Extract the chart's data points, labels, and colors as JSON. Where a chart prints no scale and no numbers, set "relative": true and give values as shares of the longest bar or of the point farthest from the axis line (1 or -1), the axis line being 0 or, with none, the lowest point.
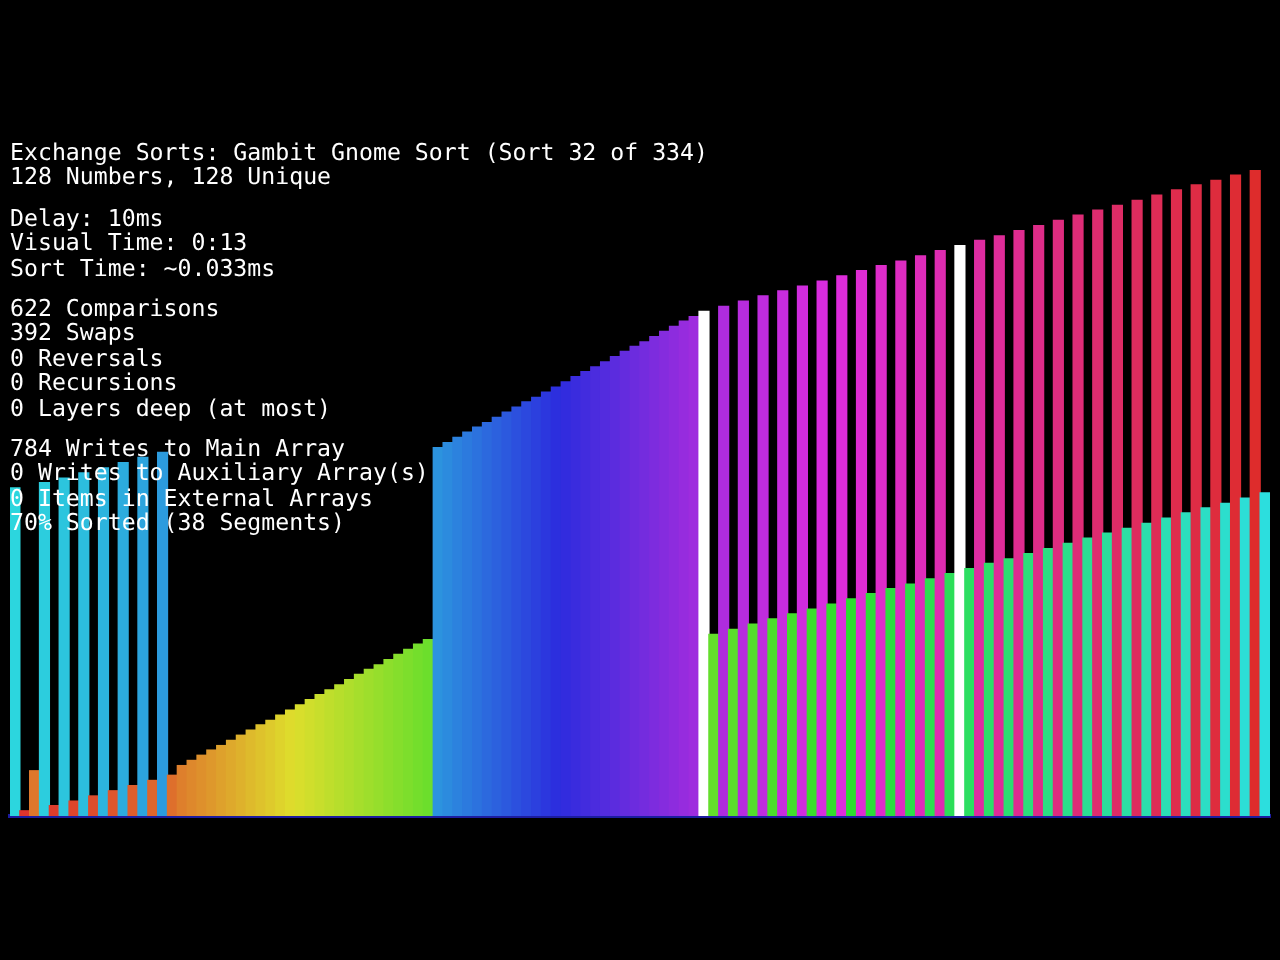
{
  "chart_data": {
    "type": "bar",
    "relative": true,
    "title": "Exchange Sorts: Gambit Gnome Sort (Sort 32 of 334)",
    "subtitle": "128 Numbers, 128 Unique",
    "annotations": [
      "Delay: 10ms",
      "Visual Time: 0:13",
      "Sort Time: ~0.033ms",
      "622 Comparisons",
      "392 Swaps",
      "0 Reversals",
      "0 Recursions",
      "0 Layers deep (at most)",
      "784 Writes to Main Array",
      "0 Writes to Auxiliary Array(s)",
      "0 Items in External Arrays",
      "70% Sorted (38 Segments)"
    ],
    "categories": [
      null,
      null,
      null,
      null,
      null,
      null,
      null,
      null,
      null,
      null,
      null,
      null,
      null,
      null,
      null,
      null,
      null,
      null,
      null,
      null,
      null,
      null,
      null,
      null,
      null,
      null,
      null,
      null,
      null,
      null,
      null,
      null,
      null,
      null,
      null,
      null,
      null,
      null,
      null,
      null,
      null,
      null,
      null,
      null,
      null,
      null,
      null,
      null,
      null,
      null,
      null,
      null,
      null,
      null,
      null,
      null,
      null,
      null,
      null,
      null,
      null,
      null,
      null,
      null,
      null,
      null,
      null,
      null,
      null,
      null,
      null,
      null,
      null,
      null,
      null,
      null,
      null,
      null,
      null,
      null,
      null,
      null,
      null,
      null,
      null,
      null,
      null,
      null,
      null,
      null,
      null,
      null,
      null,
      null,
      null,
      null,
      null,
      null,
      null,
      null,
      null,
      null,
      null,
      null,
      null,
      null,
      null,
      null,
      null,
      null,
      null,
      null,
      null,
      null,
      null,
      null,
      null,
      null,
      null,
      null,
      null,
      null,
      null,
      null,
      null,
      null,
      null,
      null
    ],
    "values": [
      0.508,
      0.008,
      0.07,
      0.516,
      0.016,
      0.523,
      0.023,
      0.531,
      0.031,
      0.539,
      0.039,
      0.547,
      0.047,
      0.555,
      0.055,
      0.563,
      0.063,
      0.078,
      0.086,
      0.094,
      0.102,
      0.109,
      0.117,
      0.125,
      0.133,
      0.141,
      0.148,
      0.156,
      0.164,
      0.172,
      0.18,
      0.188,
      0.195,
      0.203,
      0.211,
      0.219,
      0.227,
      0.234,
      0.242,
      0.25,
      0.258,
      0.266,
      0.273,
      0.57,
      0.578,
      0.586,
      0.594,
      0.602,
      0.609,
      0.617,
      0.625,
      0.633,
      0.641,
      0.648,
      0.656,
      0.664,
      0.672,
      0.68,
      0.688,
      0.695,
      0.703,
      0.711,
      0.719,
      0.727,
      0.734,
      0.742,
      0.75,
      0.758,
      0.766,
      0.773,
      0.781,
      0.281,
      0.789,
      0.289,
      0.797,
      0.297,
      0.805,
      0.305,
      0.813,
      0.313,
      0.82,
      0.32,
      0.828,
      0.328,
      0.836,
      0.336,
      0.844,
      0.344,
      0.852,
      0.352,
      0.859,
      0.359,
      0.867,
      0.367,
      0.875,
      0.375,
      0.883,
      0.383,
      0.891,
      0.391,
      0.898,
      0.398,
      0.906,
      0.406,
      0.914,
      0.414,
      0.922,
      0.422,
      0.93,
      0.43,
      0.938,
      0.438,
      0.945,
      0.445,
      0.953,
      0.453,
      0.961,
      0.461,
      0.969,
      0.469,
      0.977,
      0.477,
      0.984,
      0.484,
      0.992,
      0.492,
      1,
      0.5
    ],
    "colors": [
      "#2cd6de",
      "#de342c",
      "#de772c",
      "#2ccdde",
      "#de3d2c",
      "#2cc5de",
      "#de452c",
      "#2cbdde",
      "#de4d2c",
      "#2cb4de",
      "#de562c",
      "#2cacde",
      "#de5e2c",
      "#2ca4de",
      "#de662c",
      "#2c9bde",
      "#de6f2c",
      "#de7f2c",
      "#de882c",
      "#de902c",
      "#de982c",
      "#dea12c",
      "#dea92c",
      "#deb12c",
      "#deba2c",
      "#dec22c",
      "#deca2c",
      "#ded32c",
      "#dedb2c",
      "#d8de2c",
      "#d0de2c",
      "#c8de2c",
      "#bfde2c",
      "#b7de2c",
      "#afde2c",
      "#a6de2c",
      "#9ede2c",
      "#96de2c",
      "#8dde2c",
      "#85de2c",
      "#7dde2c",
      "#74de2c",
      "#6cde2c",
      "#2c93de",
      "#2c8bde",
      "#2c82de",
      "#2c7ade",
      "#2c72de",
      "#2c69de",
      "#2c61de",
      "#2c59de",
      "#2c50de",
      "#2c48de",
      "#2c40de",
      "#2c37de",
      "#2c2fde",
      "#322cde",
      "#3a2cde",
      "#422cde",
      "#4b2cde",
      "#532cde",
      "#5b2cde",
      "#642cde",
      "#6c2cde",
      "#742cde",
      "#7d2cde",
      "#852cde",
      "#8d2cde",
      "#962cde",
      "#9e2cde",
      "#ffffff",
      "#64de2c",
      "#af2cde",
      "#5bde2c",
      "#b72cde",
      "#53de2c",
      "#bf2cde",
      "#4bde2c",
      "#c82cde",
      "#42de2c",
      "#d02cde",
      "#3ade2c",
      "#d82cde",
      "#32de2c",
      "#de2cdb",
      "#2cde2f",
      "#de2cd3",
      "#2cde37",
      "#de2cca",
      "#2cde3f",
      "#de2cc2",
      "#2cde48",
      "#de2cba",
      "#2cde50",
      "#de2cb1",
      "#2cde58",
      "#ffffff",
      "#2cde61",
      "#de2ca1",
      "#2cde69",
      "#de2c98",
      "#2cde71",
      "#de2c90",
      "#2cde7a",
      "#de2c88",
      "#2cde82",
      "#de2c7f",
      "#2cde8a",
      "#de2c77",
      "#2cde93",
      "#de2c6f",
      "#2cde9b",
      "#de2c66",
      "#2cdea4",
      "#de2c5e",
      "#2cdeac",
      "#de2c56",
      "#2cdeb4",
      "#de2c4d",
      "#2cdebd",
      "#de2c45",
      "#2cdec5",
      "#de2c3d",
      "#2cdecd",
      "#de2c34",
      "#2cded6",
      "#de2c2c",
      "#2cdede"
    ]
  }
}
